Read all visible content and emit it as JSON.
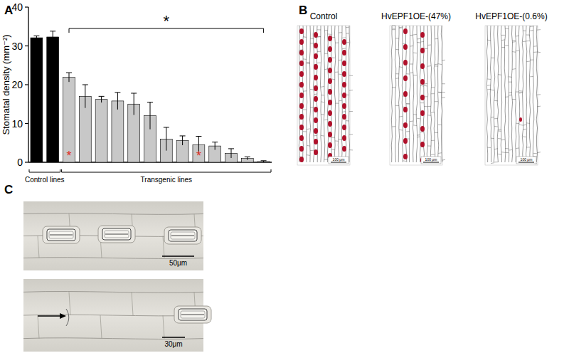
{
  "panel_labels": [
    "A",
    "B",
    "C"
  ],
  "chart_data": {
    "type": "bar",
    "y_label": "Stomatal density (mm⁻²)",
    "categories": [
      null,
      null,
      null,
      null,
      null,
      null,
      null,
      null,
      null,
      null,
      null,
      null,
      null,
      null,
      null
    ],
    "values": [
      32.1,
      32.3,
      21.9,
      17.0,
      16.2,
      15.8,
      15.0,
      12.0,
      6.0,
      5.6,
      4.5,
      4.2,
      2.3,
      1.0,
      0.2
    ],
    "errors": [
      0.5,
      1.5,
      1.2,
      3.0,
      0.8,
      2.2,
      2.8,
      3.5,
      3.0,
      1.2,
      2.2,
      1.0,
      1.2,
      0.4,
      0.2
    ],
    "colors": [
      "#000000",
      "#000000",
      "#c8c8c8",
      "#c8c8c8",
      "#c8c8c8",
      "#c8c8c8",
      "#c8c8c8",
      "#c8c8c8",
      "#c8c8c8",
      "#c8c8c8",
      "#c8c8c8",
      "#c8c8c8",
      "#c8c8c8",
      "#c8c8c8",
      "#c8c8c8"
    ],
    "ylim": [
      0,
      40
    ],
    "yticks": [
      0,
      10,
      20,
      30,
      40
    ],
    "groups": [
      {
        "label": "Control lines",
        "start": 0,
        "end": 1
      },
      {
        "label": "Transgenic lines",
        "start": 2,
        "end": 14
      }
    ],
    "annotations": [
      {
        "text": "*",
        "start": 2,
        "end": 14,
        "color": "#000000"
      },
      {
        "text": "*",
        "category": 2,
        "color": "#e0312b"
      },
      {
        "text": "*",
        "category": 10,
        "color": "#e0312b"
      }
    ]
  },
  "panel_b": {
    "images": [
      {
        "title": "Control",
        "scale_bar": "100 μm"
      },
      {
        "title": "HvEPF1OE-(47%)",
        "scale_bar": "100 μm"
      },
      {
        "title": "HvEPF1OE-(0.6%)",
        "scale_bar": "100 μm"
      }
    ]
  },
  "panel_c": {
    "images": [
      {
        "scale_bar": "50μm"
      },
      {
        "scale_bar": "30μm"
      }
    ]
  }
}
